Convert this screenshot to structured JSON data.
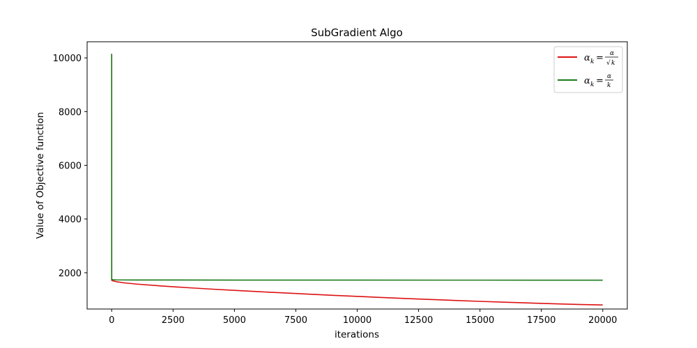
{
  "chart_data": {
    "type": "line",
    "title": "SubGradient Algo",
    "xlabel": "iterations",
    "ylabel": "Value of Objective function",
    "xlim": [
      -1000,
      21000
    ],
    "ylim": [
      650,
      10600
    ],
    "xticks": [
      0,
      2500,
      5000,
      7500,
      10000,
      12500,
      15000,
      17500,
      20000
    ],
    "xtick_labels": [
      "0",
      "2500",
      "5000",
      "7500",
      "10000",
      "12500",
      "15000",
      "17500",
      "20000"
    ],
    "yticks": [
      2000,
      4000,
      6000,
      8000,
      10000
    ],
    "ytick_labels": [
      "2000",
      "4000",
      "6000",
      "8000",
      "10000"
    ],
    "grid": false,
    "legend_position": "top-right",
    "series": [
      {
        "name": "α_k = α/√k",
        "color": "#dd1111",
        "x": [
          0,
          1,
          50,
          200,
          500,
          1000,
          2000,
          3000,
          4000,
          5000,
          6000,
          7000,
          8000,
          9000,
          10000,
          11000,
          12000,
          13000,
          14000,
          15000,
          16000,
          17000,
          18000,
          19000,
          20000
        ],
        "y": [
          10150,
          1720,
          1700,
          1665,
          1625,
          1580,
          1510,
          1450,
          1395,
          1345,
          1295,
          1250,
          1205,
          1160,
          1120,
          1080,
          1040,
          1005,
          970,
          935,
          905,
          875,
          845,
          820,
          800
        ]
      },
      {
        "name": "α_k = α/k",
        "color": "#1a7a1a",
        "x": [
          0,
          1,
          50,
          200,
          1000,
          5000,
          10000,
          15000,
          20000
        ],
        "y": [
          10150,
          1760,
          1740,
          1735,
          1730,
          1728,
          1726,
          1725,
          1724
        ]
      }
    ]
  }
}
